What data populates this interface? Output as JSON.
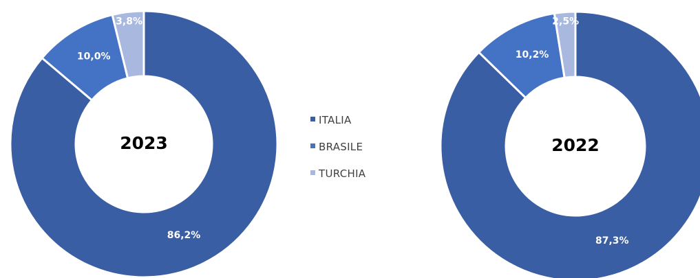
{
  "chart_data": [
    {
      "type": "pie",
      "title": "2023",
      "categories": [
        "ITALIA",
        "BRASILE",
        "TURCHIA"
      ],
      "values": [
        86.2,
        10.0,
        3.8
      ],
      "value_labels": [
        "86,2%",
        "10,0%",
        "3,8%"
      ],
      "colors": [
        "#3a5ea3",
        "#4472c4",
        "#a9b8df"
      ],
      "legend_position": "right"
    },
    {
      "type": "pie",
      "title": "2022",
      "categories": [
        "ITALIA",
        "BRASILE",
        "TURCHIA"
      ],
      "values": [
        87.3,
        10.2,
        2.5
      ],
      "value_labels": [
        "87,3%",
        "10,2%",
        "2,5%"
      ],
      "colors": [
        "#3a5ea3",
        "#4472c4",
        "#a9b8df"
      ],
      "legend_position": "right"
    }
  ],
  "legend": {
    "items": [
      {
        "label": "ITALIA",
        "color": "#3a5ea3"
      },
      {
        "label": "BRASILE",
        "color": "#4472c4"
      },
      {
        "label": "TURCHIA",
        "color": "#a9b8df"
      }
    ]
  }
}
